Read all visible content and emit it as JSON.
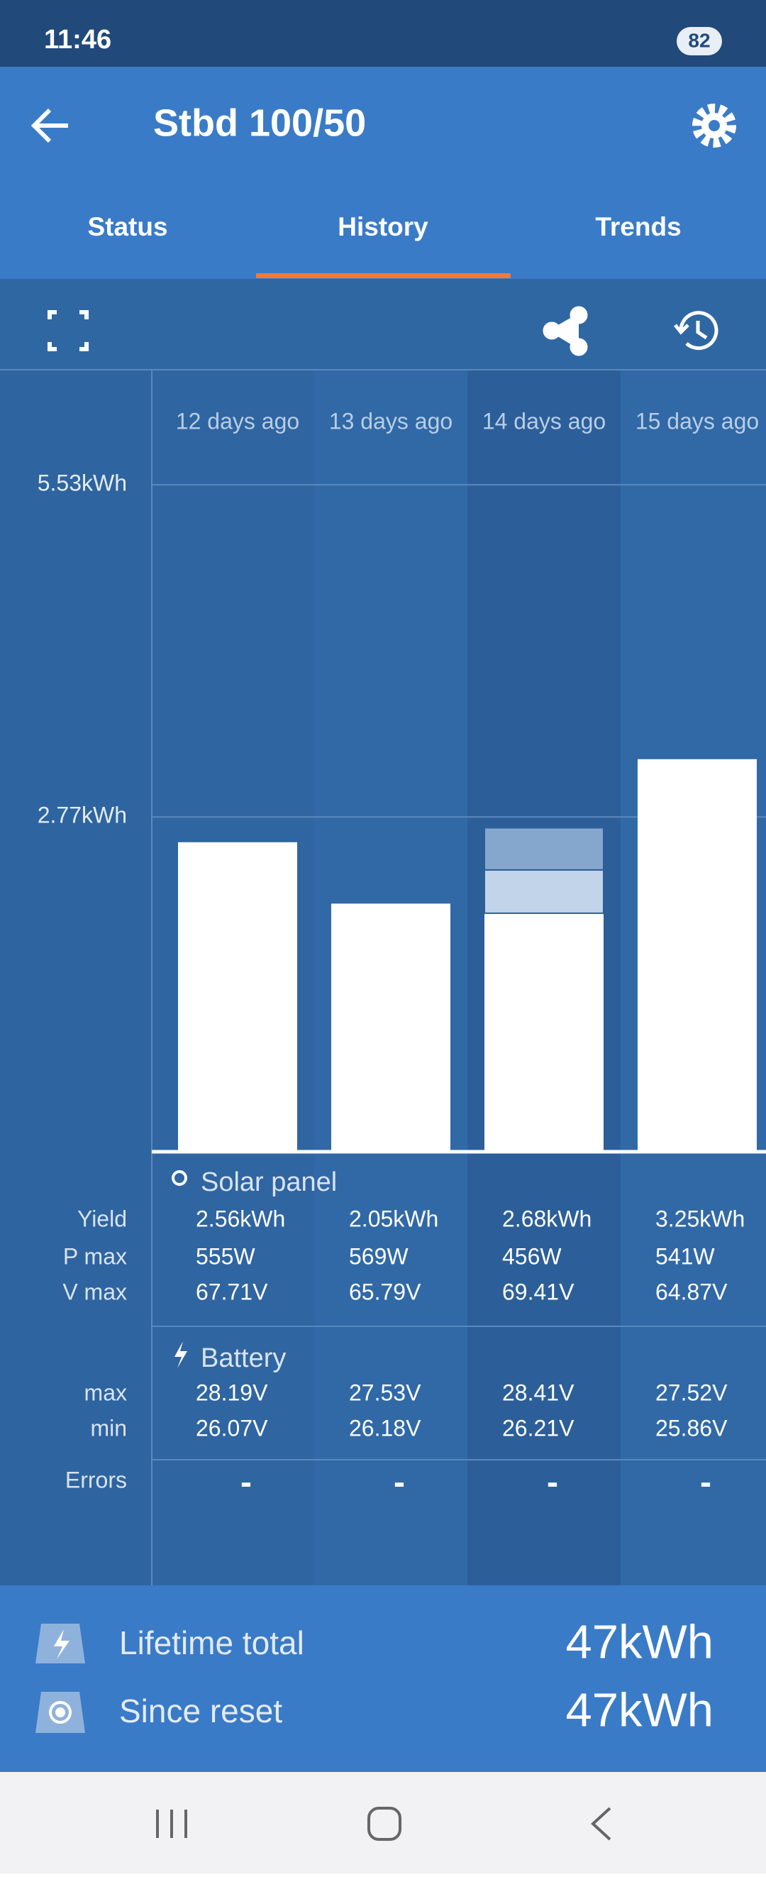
{
  "status_bar": {
    "time": "11:46",
    "battery": "82"
  },
  "app_bar": {
    "title": "Stbd 100/50"
  },
  "tabs": [
    "Status",
    "History",
    "Trends"
  ],
  "chart_data": {
    "type": "stacked_bar",
    "categories": [
      "12 days ago",
      "13 days ago",
      "14 days ago",
      "15 days ago"
    ],
    "segments": [
      [
        2.56
      ],
      [
        2.05
      ],
      [
        1.97,
        0.36,
        0.35
      ],
      [
        3.25
      ]
    ],
    "colors": [
      "#ffffff",
      "#c2d4e9",
      "#85a7cd"
    ],
    "ylim": [
      0,
      6.48
    ],
    "yticks": [
      {
        "value": 2.77,
        "label": "2.77kWh"
      },
      {
        "value": 5.53,
        "label": "5.53kWh"
      }
    ],
    "grid": true
  },
  "table": {
    "solar_title": "Solar panel",
    "solar_rows": [
      {
        "label": "Yield",
        "values": [
          "2.56kWh",
          "2.05kWh",
          "2.68kWh",
          "3.25kWh"
        ]
      },
      {
        "label": "P max",
        "values": [
          "555W",
          "569W",
          "456W",
          "541W"
        ]
      },
      {
        "label": "V max",
        "values": [
          "67.71V",
          "65.79V",
          "69.41V",
          "64.87V"
        ]
      }
    ],
    "battery_title": "Battery",
    "battery_rows": [
      {
        "label": "max",
        "values": [
          "28.19V",
          "27.53V",
          "28.41V",
          "27.52V"
        ]
      },
      {
        "label": "min",
        "values": [
          "26.07V",
          "26.18V",
          "26.21V",
          "25.86V"
        ]
      }
    ],
    "errors": {
      "label": "Errors",
      "values": [
        "-",
        "-",
        "-",
        "-"
      ]
    }
  },
  "footer": {
    "rows": [
      {
        "label": "Lifetime total",
        "value": "47kWh"
      },
      {
        "label": "Since reset",
        "value": "47kWh"
      }
    ]
  }
}
